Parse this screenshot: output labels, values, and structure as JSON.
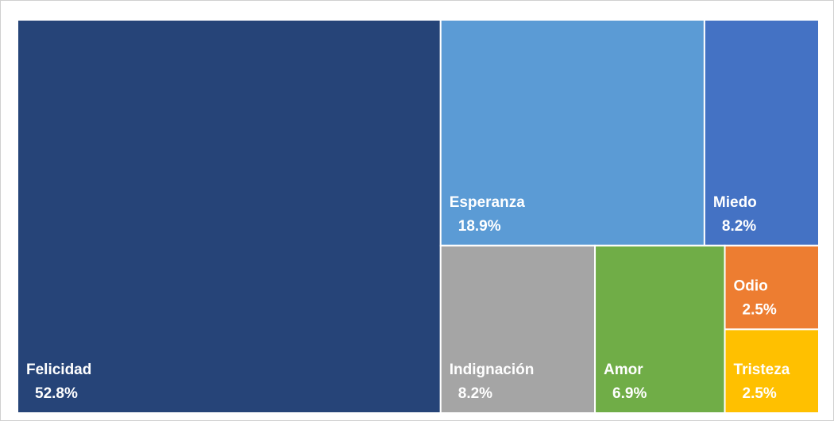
{
  "chart_data": {
    "type": "treemap",
    "categories": [
      "Felicidad",
      "Esperanza",
      "Miedo",
      "Indignación",
      "Amor",
      "Odio",
      "Tristeza"
    ],
    "values": [
      52.8,
      18.9,
      8.2,
      8.2,
      6.9,
      2.5,
      2.5
    ],
    "value_labels": [
      "52.8%",
      "18.9%",
      "8.2%",
      "8.2%",
      "6.9%",
      "2.5%",
      "2.5%"
    ],
    "colors": [
      "#264478",
      "#5b9bd5",
      "#4472c4",
      "#a5a5a5",
      "#70ad47",
      "#ed7d31",
      "#ffc000"
    ]
  }
}
